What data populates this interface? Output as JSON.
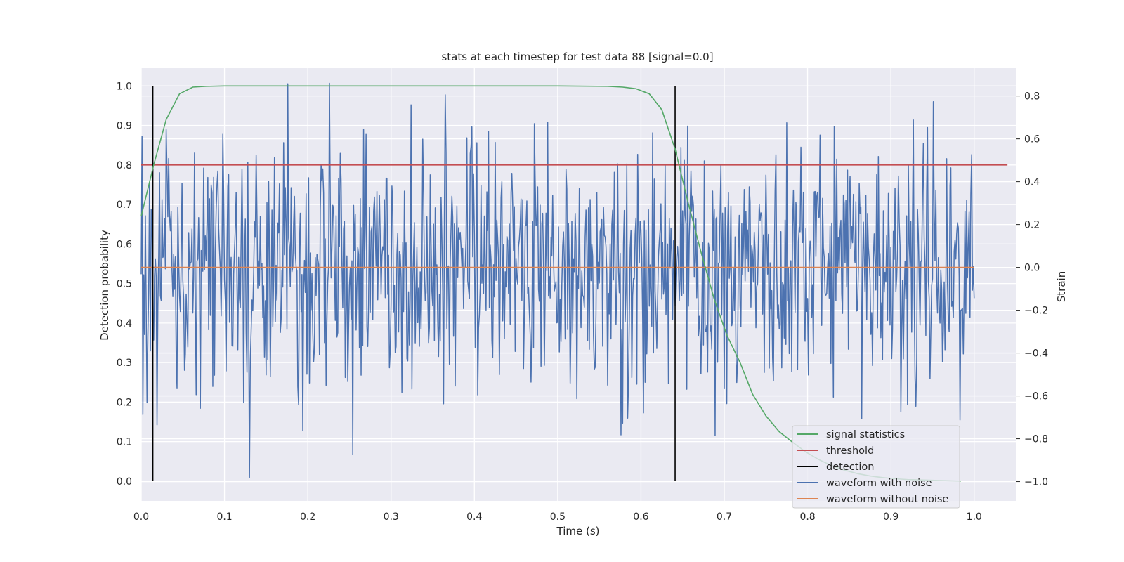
{
  "chart_data": {
    "type": "line",
    "title": "stats at each timestep for test data 88 [signal=0.0]",
    "xlabel": "Time (s)",
    "ylabel": "Detection probability",
    "y2label": "Strain",
    "xlim": [
      0.0,
      1.05
    ],
    "ylim": [
      -0.05,
      1.045
    ],
    "y2lim": [
      -1.09,
      0.93
    ],
    "xticks": [
      "0.0",
      "0.1",
      "0.2",
      "0.3",
      "0.4",
      "0.5",
      "0.6",
      "0.7",
      "0.8",
      "0.9",
      "1.0"
    ],
    "yticks": [
      "0.0",
      "0.1",
      "0.2",
      "0.3",
      "0.4",
      "0.5",
      "0.6",
      "0.7",
      "0.8",
      "0.9",
      "1.0"
    ],
    "y2ticks": [
      "−1.0",
      "−0.8",
      "−0.6",
      "−0.4",
      "−0.2",
      "0.0",
      "0.2",
      "0.4",
      "0.6",
      "0.8"
    ],
    "grid": true,
    "legend_position": "lower-right",
    "legend": [
      {
        "label": "signal statistics",
        "color": "#55a868"
      },
      {
        "label": "threshold",
        "color": "#c44e52"
      },
      {
        "label": "detection",
        "color": "#000000"
      },
      {
        "label": "waveform with noise",
        "color": "#4c72b0"
      },
      {
        "label": "waveform without noise",
        "color": "#dd8452"
      }
    ],
    "series": [
      {
        "name": "signal statistics",
        "axis": "left",
        "color": "#55a868",
        "x": [
          0.0,
          0.015,
          0.03,
          0.046,
          0.062,
          0.078,
          0.1,
          0.2,
          0.3,
          0.4,
          0.5,
          0.56,
          0.578,
          0.594,
          0.61,
          0.625,
          0.641,
          0.656,
          0.672,
          0.688,
          0.703,
          0.719,
          0.734,
          0.75,
          0.766,
          0.781,
          0.797,
          0.813,
          0.828,
          0.844,
          0.86,
          0.875,
          0.89,
          0.906,
          0.92,
          0.937,
          0.953,
          0.968,
          0.984
        ],
        "y": [
          0.67,
          0.8,
          0.915,
          0.98,
          0.997,
          0.999,
          1.0,
          1.0,
          1.0,
          1.0,
          1.0,
          0.999,
          0.997,
          0.993,
          0.98,
          0.94,
          0.84,
          0.71,
          0.58,
          0.46,
          0.37,
          0.3,
          0.22,
          0.165,
          0.125,
          0.1,
          0.075,
          0.055,
          0.04,
          0.028,
          0.019,
          0.013,
          0.009,
          0.006,
          0.004,
          0.003,
          0.002,
          0.001,
          0.0
        ]
      },
      {
        "name": "threshold",
        "axis": "left",
        "color": "#c44e52",
        "x": [
          0.0,
          1.04
        ],
        "y": [
          0.8,
          0.8
        ]
      },
      {
        "name": "waveform without noise",
        "axis": "right",
        "color": "#dd8452",
        "x": [
          0.0,
          1.0
        ],
        "y": [
          0.0,
          0.0
        ]
      },
      {
        "name": "waveform with noise",
        "axis": "right",
        "color": "#4c72b0",
        "x0": 0.0,
        "dx": 0.001,
        "sigma": 0.3,
        "ymin": -0.98,
        "ymax": 0.9
      }
    ],
    "detections": {
      "color": "#000000",
      "x": [
        0.014,
        0.641
      ],
      "y": [
        0.0,
        1.0
      ]
    }
  }
}
